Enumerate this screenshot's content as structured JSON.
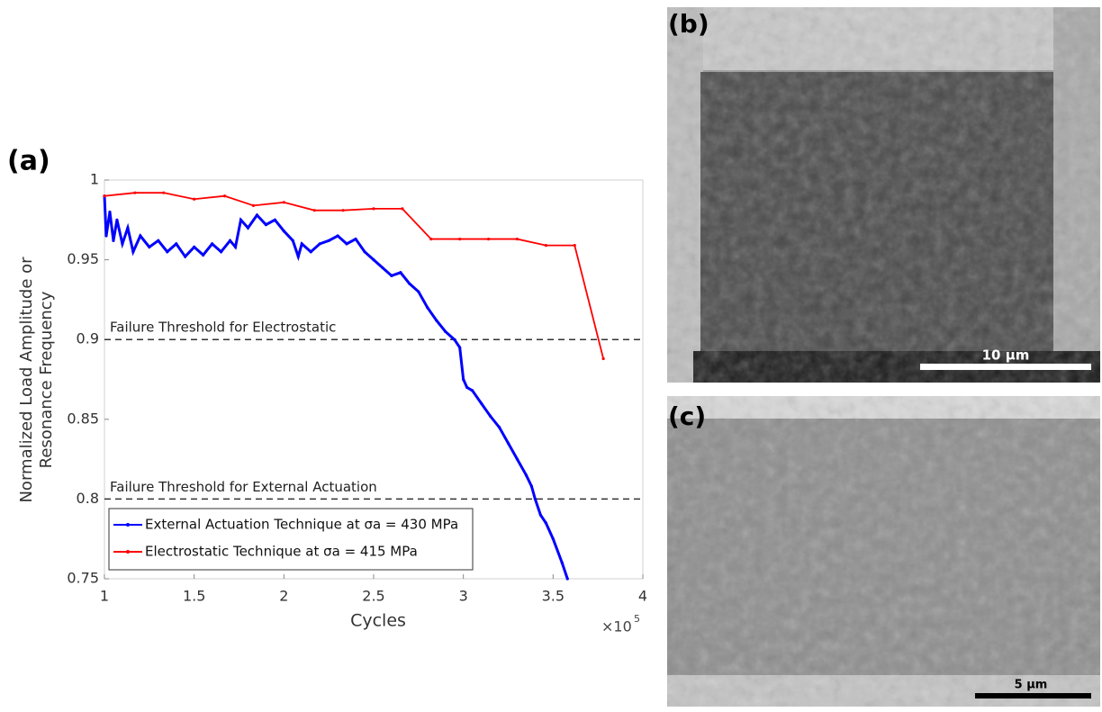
{
  "chart_data": {
    "type": "line",
    "panel_label": "(a)",
    "x_label": "Cycles",
    "x_multiplier": "×10",
    "x_exponent": "5",
    "y_label": [
      "Normalized  Load Amplitude or",
      "Resonance Frequency"
    ],
    "xlim": [
      1,
      4
    ],
    "xticks": [
      1,
      1.5,
      2,
      2.5,
      3,
      3.5,
      4
    ],
    "ylim": [
      0.75,
      1
    ],
    "yticks": [
      0.75,
      0.8,
      0.85,
      0.9,
      0.95,
      1
    ],
    "reference_lines": [
      {
        "y": 0.9,
        "label": "Failure Threshold for Electrostatic"
      },
      {
        "y": 0.8,
        "label": "Failure Threshold for External Actuation"
      }
    ],
    "series": [
      {
        "name": "External Actuation Technique at σa = 430 MPa",
        "color": "#0000ff",
        "x": [
          1.0,
          1.01,
          1.03,
          1.05,
          1.07,
          1.1,
          1.13,
          1.16,
          1.2,
          1.25,
          1.3,
          1.35,
          1.4,
          1.45,
          1.5,
          1.55,
          1.6,
          1.65,
          1.7,
          1.73,
          1.76,
          1.8,
          1.85,
          1.9,
          1.95,
          2.0,
          2.05,
          2.08,
          2.1,
          2.15,
          2.2,
          2.25,
          2.3,
          2.35,
          2.4,
          2.45,
          2.5,
          2.55,
          2.6,
          2.65,
          2.7,
          2.75,
          2.8,
          2.85,
          2.9,
          2.95,
          2.98,
          3.0,
          3.02,
          3.05,
          3.1,
          3.15,
          3.2,
          3.25,
          3.3,
          3.35,
          3.38,
          3.4,
          3.43,
          3.46,
          3.5,
          3.55,
          3.58
        ],
        "values": [
          0.99,
          0.965,
          0.98,
          0.962,
          0.975,
          0.96,
          0.97,
          0.955,
          0.965,
          0.958,
          0.962,
          0.955,
          0.96,
          0.952,
          0.958,
          0.953,
          0.96,
          0.955,
          0.962,
          0.958,
          0.975,
          0.97,
          0.978,
          0.972,
          0.975,
          0.968,
          0.962,
          0.952,
          0.96,
          0.955,
          0.96,
          0.962,
          0.965,
          0.96,
          0.963,
          0.955,
          0.95,
          0.945,
          0.94,
          0.942,
          0.935,
          0.93,
          0.92,
          0.912,
          0.905,
          0.9,
          0.895,
          0.875,
          0.87,
          0.868,
          0.86,
          0.852,
          0.845,
          0.835,
          0.825,
          0.815,
          0.808,
          0.8,
          0.79,
          0.785,
          0.775,
          0.76,
          0.75
        ]
      },
      {
        "name": "Electrostatic Technique at σa = 415 MPa",
        "color": "#ff0000",
        "x": [
          1.0,
          1.17,
          1.33,
          1.5,
          1.67,
          1.83,
          2.0,
          2.17,
          2.33,
          2.5,
          2.66,
          2.82,
          2.98,
          3.14,
          3.3,
          3.46,
          3.62,
          3.78
        ],
        "values": [
          0.99,
          0.992,
          0.992,
          0.988,
          0.99,
          0.984,
          0.986,
          0.981,
          0.981,
          0.982,
          0.982,
          0.963,
          0.963,
          0.963,
          0.963,
          0.959,
          0.959,
          0.888
        ]
      }
    ]
  },
  "panels": [
    {
      "label": "(b)",
      "scale_bar": "10 μm"
    },
    {
      "label": "(c)",
      "scale_bar": "5 μm"
    }
  ]
}
